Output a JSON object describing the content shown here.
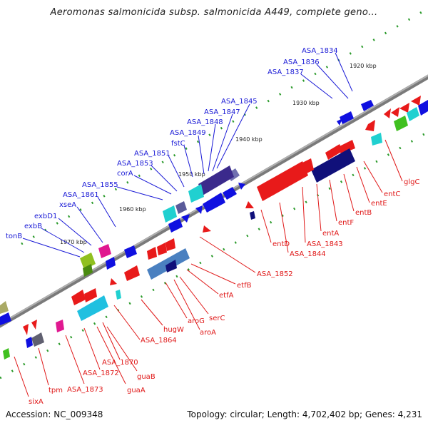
{
  "title": "Aeromonas salmonicida subsp. salmonicida A449, complete geno...",
  "footer": {
    "accession": "Accession: NC_009348",
    "summary": "Topology: circular; Length: 4,702,402 bp; Genes: 4,231"
  },
  "colors": {
    "backbone": "#8c8c8c",
    "forward_label": "#1a1ad6",
    "reverse_label": "#e01818",
    "forward_gene": "#1010e0",
    "reverse_gene": "#e81a1a",
    "tick": "#2a9a2a",
    "kbp_label": "#222222"
  },
  "kbp_labels": [
    "1920 kbp",
    "1930 kbp",
    "1940 kbp",
    "1950 kbp",
    "1960 kbp",
    "1970 kbp"
  ],
  "forward_genes": [
    "ASA_1834",
    "ASA_1836",
    "ASA_1837",
    "ASA_1845",
    "ASA_1847",
    "ASA_1848",
    "ASA_1849",
    "fstC",
    "ASA_1851",
    "ASA_1853",
    "corA",
    "ASA_1855",
    "ASA_1861",
    "xseA",
    "exbD1",
    "exbB",
    "tonB"
  ],
  "reverse_genes": [
    "glgC",
    "entC",
    "entE",
    "entB",
    "entF",
    "entA",
    "ASA_1843",
    "ASA_1844",
    "entD",
    "ASA_1852",
    "etfB",
    "etfA",
    "serC",
    "aroA",
    "aroG",
    "hugW",
    "ASA_1864",
    "ASA_1870",
    "guaB",
    "ASA_1872",
    "guaA",
    "ASA_1873",
    "tpm",
    "sixA"
  ]
}
